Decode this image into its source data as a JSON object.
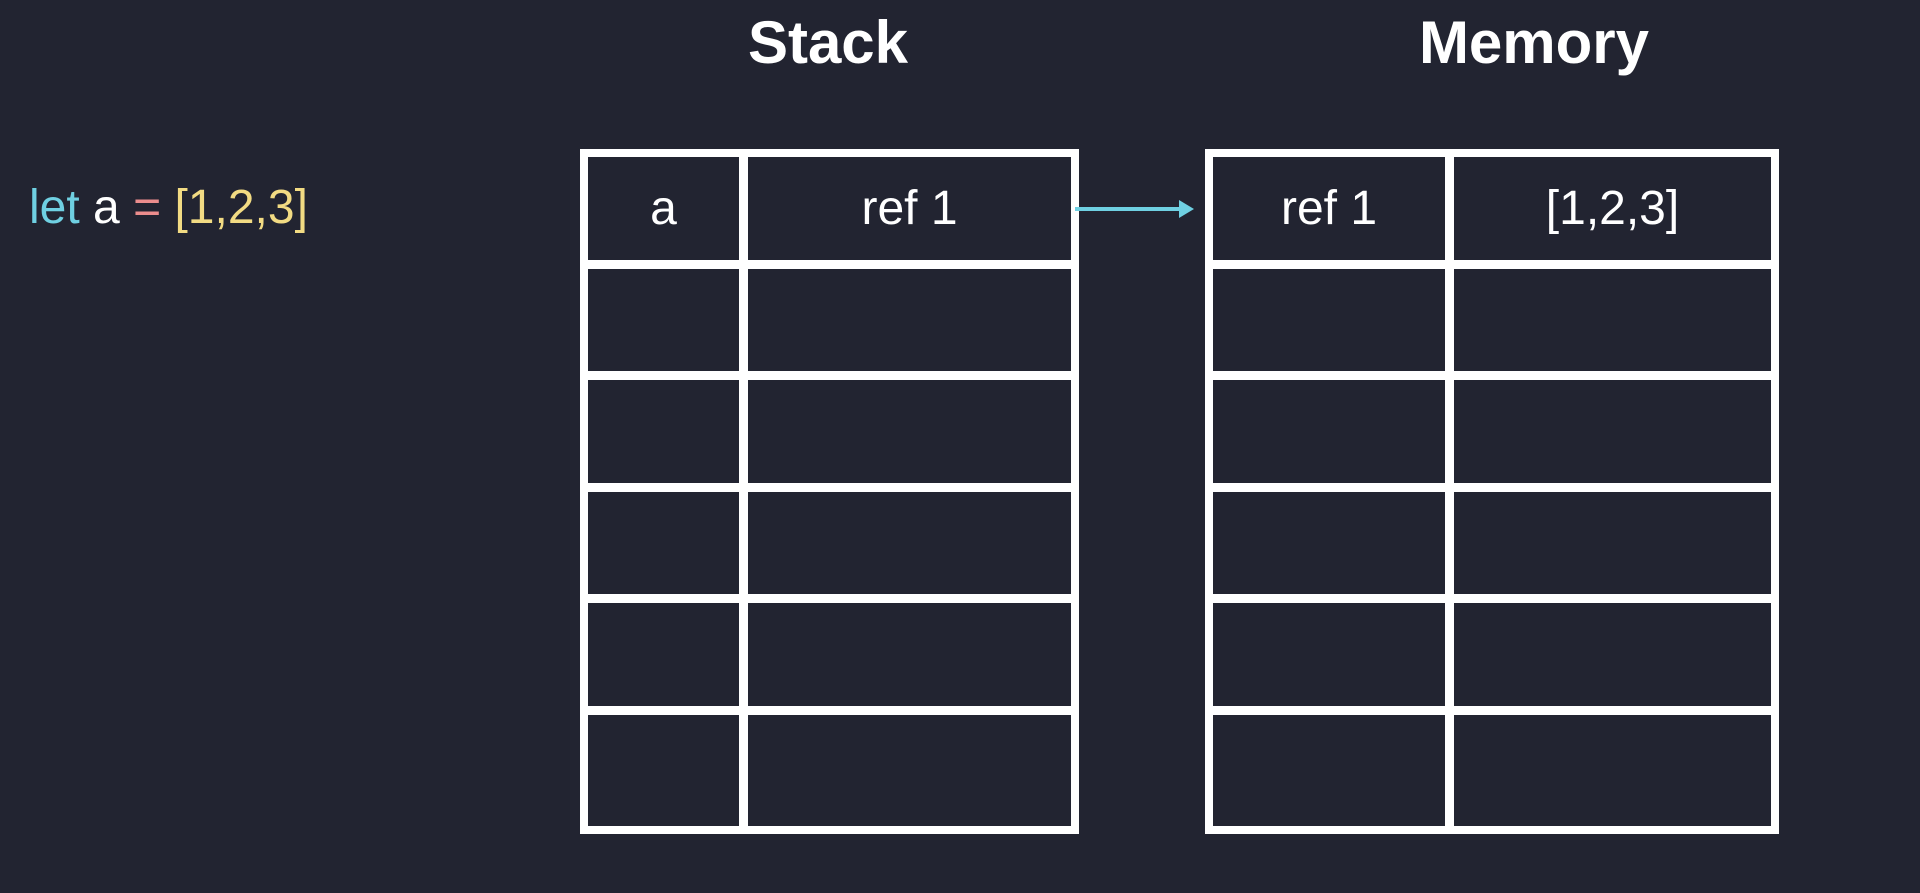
{
  "headings": {
    "stack": "Stack",
    "memory": "Memory"
  },
  "code": {
    "keyword": "let",
    "identifier": "a",
    "operator": "=",
    "value": "[1,2,3]"
  },
  "stack": {
    "rows": [
      {
        "name": "a",
        "value": "ref 1"
      },
      {
        "name": "",
        "value": ""
      },
      {
        "name": "",
        "value": ""
      },
      {
        "name": "",
        "value": ""
      },
      {
        "name": "",
        "value": ""
      },
      {
        "name": "",
        "value": ""
      }
    ]
  },
  "memory": {
    "rows": [
      {
        "address": "ref 1",
        "value": "[1,2,3]"
      },
      {
        "address": "",
        "value": ""
      },
      {
        "address": "",
        "value": ""
      },
      {
        "address": "",
        "value": ""
      },
      {
        "address": "",
        "value": ""
      },
      {
        "address": "",
        "value": ""
      }
    ]
  },
  "colors": {
    "background": "#222431",
    "keyword": "#6fd0e2",
    "operator": "#ec8d8d",
    "literal": "#f2db83",
    "arrow": "#6fd0e2",
    "grid": "#ffffff"
  }
}
